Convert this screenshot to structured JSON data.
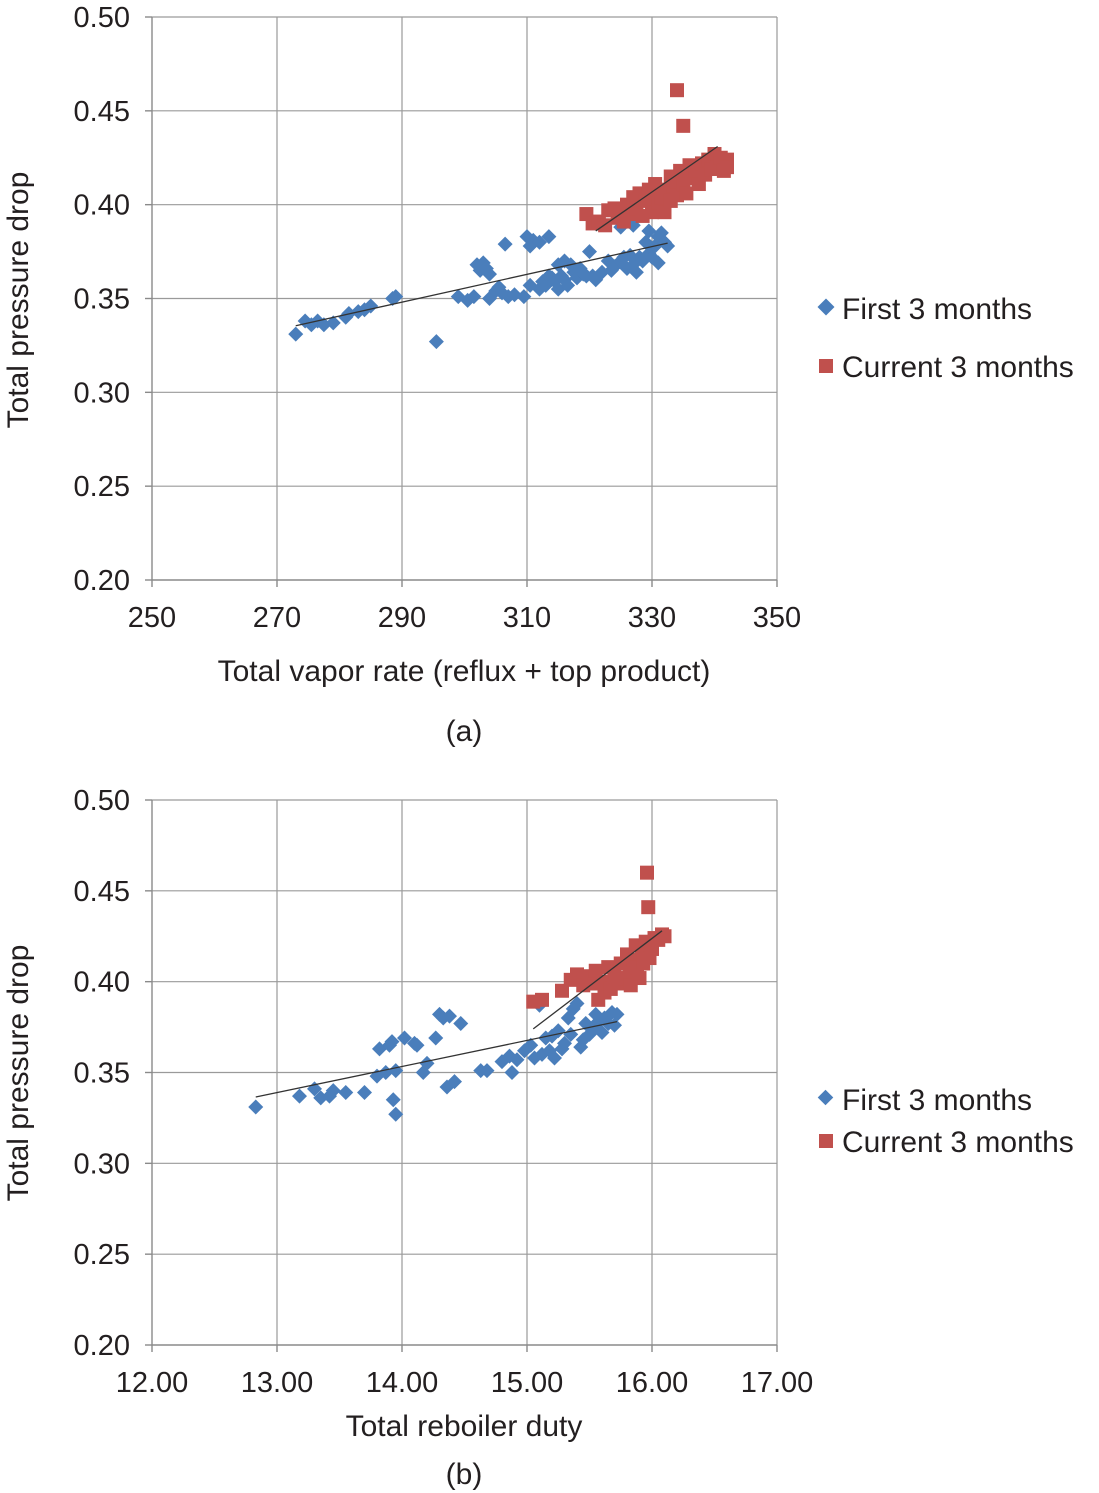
{
  "colors": {
    "first": "#4a7ebb",
    "current": "#c0504d"
  },
  "chart_data": [
    {
      "type": "scatter",
      "caption": "(a)",
      "xlabel": "Total vapor rate (reflux + top product)",
      "ylabel": "Total pressure drop",
      "xlim": [
        250,
        350
      ],
      "ylim": [
        0.2,
        0.5
      ],
      "x_ticks": [
        "250",
        "270",
        "290",
        "310",
        "330",
        "350"
      ],
      "y_ticks": [
        "0.20",
        "0.25",
        "0.30",
        "0.35",
        "0.40",
        "0.45",
        "0.50"
      ],
      "legend_position": "right",
      "series": [
        {
          "name": "First 3 months",
          "marker": "diamond",
          "points": [
            [
              273,
              0.331
            ],
            [
              274.5,
              0.338
            ],
            [
              275.5,
              0.336
            ],
            [
              276.5,
              0.338
            ],
            [
              277.5,
              0.336
            ],
            [
              279,
              0.337
            ],
            [
              281,
              0.34
            ],
            [
              281.5,
              0.342
            ],
            [
              283,
              0.343
            ],
            [
              284,
              0.344
            ],
            [
              285,
              0.346
            ],
            [
              288.5,
              0.35
            ],
            [
              289,
              0.351
            ],
            [
              295.5,
              0.327
            ],
            [
              299,
              0.351
            ],
            [
              300.5,
              0.349
            ],
            [
              301.5,
              0.351
            ],
            [
              302,
              0.368
            ],
            [
              302.5,
              0.365
            ],
            [
              303,
              0.369
            ],
            [
              303.5,
              0.366
            ],
            [
              304,
              0.363
            ],
            [
              304,
              0.35
            ],
            [
              305,
              0.354
            ],
            [
              305.5,
              0.356
            ],
            [
              306,
              0.353
            ],
            [
              306.5,
              0.379
            ],
            [
              307,
              0.351
            ],
            [
              308,
              0.352
            ],
            [
              309.5,
              0.351
            ],
            [
              310,
              0.383
            ],
            [
              310.5,
              0.378
            ],
            [
              310.5,
              0.357
            ],
            [
              311,
              0.381
            ],
            [
              312,
              0.38
            ],
            [
              312,
              0.355
            ],
            [
              312.5,
              0.359
            ],
            [
              313,
              0.357
            ],
            [
              313.5,
              0.362
            ],
            [
              313.5,
              0.383
            ],
            [
              314,
              0.361
            ],
            [
              314.5,
              0.359
            ],
            [
              315,
              0.355
            ],
            [
              315,
              0.368
            ],
            [
              315.5,
              0.362
            ],
            [
              316,
              0.37
            ],
            [
              316,
              0.36
            ],
            [
              316.5,
              0.357
            ],
            [
              317,
              0.368
            ],
            [
              317.5,
              0.364
            ],
            [
              318,
              0.361
            ],
            [
              318.5,
              0.366
            ],
            [
              319,
              0.363
            ],
            [
              319.5,
              0.362
            ],
            [
              320,
              0.375
            ],
            [
              320.5,
              0.362
            ],
            [
              321,
              0.36
            ],
            [
              322,
              0.364
            ],
            [
              323,
              0.37
            ],
            [
              323.5,
              0.365
            ],
            [
              324,
              0.367
            ],
            [
              325,
              0.37
            ],
            [
              325,
              0.388
            ],
            [
              325.5,
              0.372
            ],
            [
              326,
              0.366
            ],
            [
              326.5,
              0.373
            ],
            [
              327,
              0.368
            ],
            [
              327,
              0.389
            ],
            [
              327.5,
              0.364
            ],
            [
              328,
              0.372
            ],
            [
              328.5,
              0.37
            ],
            [
              329,
              0.38
            ],
            [
              329.5,
              0.374
            ],
            [
              329.5,
              0.386
            ],
            [
              330,
              0.372
            ],
            [
              330.5,
              0.378
            ],
            [
              331,
              0.369
            ],
            [
              331,
              0.383
            ],
            [
              331.5,
              0.385
            ],
            [
              332,
              0.38
            ],
            [
              332.5,
              0.378
            ]
          ],
          "trendline": [
            [
              273,
              0.3355
            ],
            [
              332.5,
              0.3795
            ]
          ]
        },
        {
          "name": "Current 3 months",
          "marker": "square",
          "points": [
            [
              319.5,
              0.395
            ],
            [
              320.5,
              0.39
            ],
            [
              321.5,
              0.391
            ],
            [
              322.5,
              0.389
            ],
            [
              323,
              0.397
            ],
            [
              324,
              0.398
            ],
            [
              324.5,
              0.393
            ],
            [
              325,
              0.396
            ],
            [
              325.5,
              0.391
            ],
            [
              326,
              0.4
            ],
            [
              326.5,
              0.395
            ],
            [
              327,
              0.404
            ],
            [
              327.5,
              0.398
            ],
            [
              328,
              0.406
            ],
            [
              328.5,
              0.394
            ],
            [
              329,
              0.402
            ],
            [
              329.5,
              0.408
            ],
            [
              330,
              0.396
            ],
            [
              330.5,
              0.411
            ],
            [
              331,
              0.401
            ],
            [
              331.5,
              0.404
            ],
            [
              332,
              0.396
            ],
            [
              332.5,
              0.408
            ],
            [
              333,
              0.415
            ],
            [
              333,
              0.402
            ],
            [
              333.5,
              0.41
            ],
            [
              334,
              0.405
            ],
            [
              334,
              0.461
            ],
            [
              334.5,
              0.418
            ],
            [
              335,
              0.442
            ],
            [
              335,
              0.411
            ],
            [
              335.5,
              0.406
            ],
            [
              336,
              0.421
            ],
            [
              336.5,
              0.414
            ],
            [
              337,
              0.418
            ],
            [
              337.5,
              0.411
            ],
            [
              338,
              0.422
            ],
            [
              338.5,
              0.416
            ],
            [
              339,
              0.424
            ],
            [
              339.5,
              0.419
            ],
            [
              340,
              0.427
            ],
            [
              340.5,
              0.42
            ],
            [
              341,
              0.425
            ],
            [
              341.5,
              0.418
            ],
            [
              342,
              0.424
            ],
            [
              342,
              0.42
            ]
          ],
          "trendline": [
            [
              321,
              0.386
            ],
            [
              340.5,
              0.431
            ]
          ]
        }
      ]
    },
    {
      "type": "scatter",
      "caption": "(b)",
      "xlabel": "Total reboiler duty",
      "ylabel": "Total pressure drop",
      "xlim": [
        12.0,
        17.0
      ],
      "ylim": [
        0.2,
        0.5
      ],
      "x_ticks": [
        "12.00",
        "13.00",
        "14.00",
        "15.00",
        "16.00",
        "17.00"
      ],
      "y_ticks": [
        "0.20",
        "0.25",
        "0.30",
        "0.35",
        "0.40",
        "0.45",
        "0.50"
      ],
      "legend_position": "right",
      "series": [
        {
          "name": "First 3 months",
          "marker": "diamond",
          "points": [
            [
              12.83,
              0.331
            ],
            [
              13.18,
              0.337
            ],
            [
              13.3,
              0.341
            ],
            [
              13.35,
              0.336
            ],
            [
              13.42,
              0.337
            ],
            [
              13.45,
              0.34
            ],
            [
              13.55,
              0.339
            ],
            [
              13.7,
              0.339
            ],
            [
              13.8,
              0.348
            ],
            [
              13.82,
              0.363
            ],
            [
              13.87,
              0.35
            ],
            [
              13.9,
              0.365
            ],
            [
              13.92,
              0.367
            ],
            [
              13.93,
              0.335
            ],
            [
              13.95,
              0.327
            ],
            [
              13.95,
              0.351
            ],
            [
              14.02,
              0.369
            ],
            [
              14.1,
              0.366
            ],
            [
              14.12,
              0.365
            ],
            [
              14.17,
              0.35
            ],
            [
              14.2,
              0.355
            ],
            [
              14.27,
              0.369
            ],
            [
              14.3,
              0.382
            ],
            [
              14.33,
              0.38
            ],
            [
              14.36,
              0.342
            ],
            [
              14.38,
              0.381
            ],
            [
              14.42,
              0.345
            ],
            [
              14.47,
              0.377
            ],
            [
              14.63,
              0.351
            ],
            [
              14.68,
              0.351
            ],
            [
              14.8,
              0.356
            ],
            [
              14.86,
              0.359
            ],
            [
              14.88,
              0.35
            ],
            [
              14.92,
              0.357
            ],
            [
              14.98,
              0.362
            ],
            [
              15.03,
              0.365
            ],
            [
              15.06,
              0.358
            ],
            [
              15.1,
              0.387
            ],
            [
              15.12,
              0.36
            ],
            [
              15.15,
              0.369
            ],
            [
              15.18,
              0.362
            ],
            [
              15.2,
              0.37
            ],
            [
              15.22,
              0.358
            ],
            [
              15.25,
              0.373
            ],
            [
              15.28,
              0.363
            ],
            [
              15.3,
              0.366
            ],
            [
              15.33,
              0.38
            ],
            [
              15.35,
              0.371
            ],
            [
              15.37,
              0.385
            ],
            [
              15.4,
              0.388
            ],
            [
              15.43,
              0.364
            ],
            [
              15.45,
              0.368
            ],
            [
              15.47,
              0.377
            ],
            [
              15.5,
              0.371
            ],
            [
              15.52,
              0.374
            ],
            [
              15.55,
              0.382
            ],
            [
              15.57,
              0.378
            ],
            [
              15.6,
              0.372
            ],
            [
              15.62,
              0.38
            ],
            [
              15.65,
              0.377
            ],
            [
              15.68,
              0.383
            ],
            [
              15.7,
              0.376
            ],
            [
              15.72,
              0.382
            ]
          ],
          "trendline": [
            [
              12.83,
              0.3365
            ],
            [
              15.72,
              0.378
            ]
          ]
        },
        {
          "name": "Current 3 months",
          "marker": "square",
          "points": [
            [
              15.05,
              0.389
            ],
            [
              15.12,
              0.39
            ],
            [
              15.28,
              0.395
            ],
            [
              15.35,
              0.401
            ],
            [
              15.4,
              0.404
            ],
            [
              15.45,
              0.398
            ],
            [
              15.5,
              0.403
            ],
            [
              15.52,
              0.399
            ],
            [
              15.55,
              0.406
            ],
            [
              15.57,
              0.39
            ],
            [
              15.6,
              0.4
            ],
            [
              15.62,
              0.394
            ],
            [
              15.65,
              0.408
            ],
            [
              15.67,
              0.396
            ],
            [
              15.7,
              0.403
            ],
            [
              15.72,
              0.399
            ],
            [
              15.75,
              0.41
            ],
            [
              15.78,
              0.402
            ],
            [
              15.8,
              0.415
            ],
            [
              15.82,
              0.405
            ],
            [
              15.83,
              0.398
            ],
            [
              15.85,
              0.412
            ],
            [
              15.87,
              0.42
            ],
            [
              15.88,
              0.408
            ],
            [
              15.9,
              0.402
            ],
            [
              15.92,
              0.416
            ],
            [
              15.93,
              0.41
            ],
            [
              15.95,
              0.422
            ],
            [
              15.96,
              0.46
            ],
            [
              15.97,
              0.441
            ],
            [
              15.98,
              0.413
            ],
            [
              16.0,
              0.418
            ],
            [
              16.02,
              0.424
            ],
            [
              16.05,
              0.423
            ],
            [
              16.08,
              0.426
            ],
            [
              16.1,
              0.425
            ]
          ],
          "trendline": [
            [
              15.05,
              0.374
            ],
            [
              16.08,
              0.428
            ]
          ]
        }
      ]
    }
  ]
}
